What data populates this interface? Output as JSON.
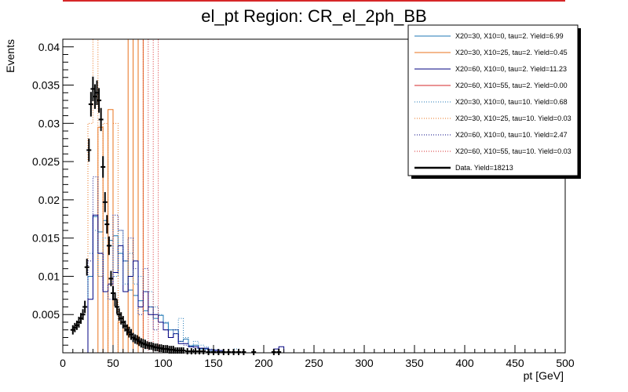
{
  "chart_data": {
    "type": "line",
    "title": "el_pt Region: CR_el_2ph_BB",
    "xlabel": "pt [GeV]",
    "ylabel": "Events",
    "xlim": [
      0,
      500
    ],
    "ylim": [
      0,
      0.041
    ],
    "x_ticks": [
      0,
      50,
      100,
      150,
      200,
      250,
      300,
      350,
      400,
      450,
      500
    ],
    "y_ticks": [
      0.005,
      0.01,
      0.015,
      0.02,
      0.025,
      0.03,
      0.035,
      0.04
    ],
    "legend_position": "top-right",
    "bin_edges": [
      25,
      30,
      35,
      40,
      45,
      50,
      55,
      60,
      65,
      70,
      75,
      80,
      85,
      90,
      95,
      100,
      105,
      110,
      115,
      120,
      125,
      130,
      135,
      140,
      145,
      150,
      155,
      160,
      165,
      170,
      175,
      180,
      185,
      190,
      195,
      200,
      205,
      210,
      215,
      220,
      225
    ],
    "series": [
      {
        "name": "X20=30, X10=0, tau=2. Yield=6.99",
        "color": "#1f77b4",
        "style": "solid",
        "values": [
          0.01,
          0.0178,
          0.0158,
          0.0173,
          0.0147,
          0.0153,
          0.013,
          0.012,
          0.0082,
          0.0075,
          0.0068,
          0.0055,
          0.006,
          0.0045,
          0.0049,
          0.0039,
          0.003,
          0.003,
          0.0015,
          0.0018,
          0.0009,
          0.001,
          0.0005,
          0.0005,
          0.0002,
          0,
          0,
          0,
          0,
          0,
          0,
          0,
          0,
          0,
          0,
          0,
          0,
          0,
          0,
          0
        ]
      },
      {
        "name": "X20=30, X10=25, tau=2. Yield=0.45",
        "color": "#e8731e",
        "style": "solid",
        "values": [
          0,
          0,
          0.0295,
          0,
          0.0318,
          0,
          0.004,
          0,
          0.041,
          0,
          0.041,
          0,
          0,
          0,
          0,
          0,
          0,
          0,
          0,
          0,
          0,
          0,
          0,
          0,
          0,
          0,
          0,
          0,
          0,
          0,
          0,
          0,
          0,
          0,
          0,
          0,
          0,
          0,
          0,
          0
        ]
      },
      {
        "name": "X20=60, X10=0, tau=2. Yield=11.23",
        "color": "#000080",
        "style": "solid",
        "values": [
          0.007,
          0.018,
          0.013,
          0.008,
          0.009,
          0.0105,
          0.014,
          0.008,
          0.01,
          0.012,
          0.006,
          0.008,
          0.005,
          0.005,
          0.004,
          0.003,
          0.002,
          0.0025,
          0.0012,
          0.0012,
          0.0008,
          0.0008,
          0.0006,
          0.0006,
          0.0004,
          0.0003,
          0.0003,
          0,
          0,
          0,
          0,
          0,
          0,
          0,
          0,
          0,
          0,
          0.0005,
          0.0008,
          0
        ]
      },
      {
        "name": "X20=60, X10=55, tau=2. Yield=0.00",
        "color": "#d62728",
        "style": "solid",
        "values": [
          0,
          0,
          0,
          0,
          0,
          0,
          0,
          0,
          0,
          0,
          0,
          0,
          0,
          0,
          0,
          0,
          0,
          0,
          0,
          0,
          0,
          0,
          0,
          0,
          0,
          0,
          0,
          0,
          0,
          0,
          0,
          0,
          0,
          0,
          0,
          0,
          0,
          0,
          0,
          0
        ]
      },
      {
        "name": "X20=30, X10=0, tau=10. Yield=0.68",
        "color": "#1f77b4",
        "style": "dotted",
        "values": [
          0.013,
          0.016,
          0.01,
          0.015,
          0.014,
          0.01,
          0.016,
          0.009,
          0.013,
          0.009,
          0.01,
          0.008,
          0.008,
          0.006,
          0.005,
          0.004,
          0.003,
          0.0025,
          0.0045,
          0.002,
          0.001,
          0.0015,
          0.001,
          0.0008,
          0.0005,
          0.0004,
          0.0002,
          0,
          0,
          0.0005,
          0,
          0,
          0,
          0,
          0,
          0,
          0,
          0,
          0,
          0
        ]
      },
      {
        "name": "X20=30, X10=25, tau=10. Yield=0.03",
        "color": "#e8731e",
        "style": "dotted",
        "values": [
          0.03,
          0.041,
          0.01,
          0.03,
          0,
          0.03,
          0,
          0,
          0,
          0,
          0,
          0,
          0,
          0,
          0,
          0,
          0,
          0,
          0,
          0,
          0,
          0,
          0,
          0,
          0,
          0,
          0,
          0,
          0,
          0,
          0,
          0,
          0,
          0,
          0,
          0,
          0,
          0,
          0,
          0
        ]
      },
      {
        "name": "X20=60, X10=0, tau=10. Yield=2.47",
        "color": "#000080",
        "style": "dotted",
        "values": [
          0.012,
          0.023,
          0.013,
          0.008,
          0.007,
          0.018,
          0.016,
          0.012,
          0.015,
          0.011,
          0.005,
          0.011,
          0.006,
          0.003,
          0.004,
          0.003,
          0.002,
          0.003,
          0.0015,
          0.001,
          0.0008,
          0.0006,
          0.0006,
          0.0004,
          0.0004,
          0.0004,
          0,
          0,
          0,
          0,
          0,
          0,
          0,
          0,
          0,
          0,
          0,
          0,
          0,
          0
        ]
      },
      {
        "name": "X20=60, X10=55, tau=10. Yield=0.03",
        "color": "#d62728",
        "style": "dotted",
        "values": [
          0,
          0,
          0,
          0,
          0,
          0,
          0,
          0,
          0,
          0,
          0,
          0.041,
          0,
          0.041,
          0,
          0,
          0,
          0,
          0,
          0,
          0,
          0,
          0,
          0,
          0,
          0,
          0,
          0,
          0,
          0,
          0,
          0,
          0,
          0,
          0,
          0,
          0,
          0,
          0,
          0
        ]
      }
    ],
    "data_series": {
      "name": "Data. Yield=18213",
      "color": "#000000",
      "x": [
        10,
        12,
        14,
        16,
        18,
        20,
        22,
        24,
        26,
        28,
        30,
        32,
        34,
        36,
        38,
        40,
        42,
        44,
        46,
        48,
        50,
        52,
        54,
        56,
        58,
        60,
        62,
        64,
        66,
        68,
        70,
        72,
        74,
        76,
        78,
        80,
        82,
        84,
        86,
        88,
        90,
        92,
        94,
        96,
        98,
        100,
        102,
        104,
        106,
        108,
        110,
        112,
        114,
        116,
        118,
        120,
        124,
        128,
        132,
        136,
        140,
        145,
        150,
        155,
        160,
        165,
        170,
        175,
        180,
        190,
        210,
        215
      ],
      "y": [
        0.003,
        0.0033,
        0.0036,
        0.004,
        0.0045,
        0.005,
        0.006,
        0.0112,
        0.0265,
        0.0325,
        0.0345,
        0.0335,
        0.034,
        0.033,
        0.0305,
        0.0243,
        0.0197,
        0.0168,
        0.014,
        0.0097,
        0.0078,
        0.007,
        0.006,
        0.005,
        0.0045,
        0.004,
        0.0035,
        0.003,
        0.0027,
        0.0024,
        0.002,
        0.0018,
        0.0017,
        0.0015,
        0.0013,
        0.0012,
        0.0011,
        0.001,
        0.0009,
        0.0009,
        0.0008,
        0.0007,
        0.0007,
        0.0006,
        0.0006,
        0.0005,
        0.0005,
        0.0005,
        0.0004,
        0.0004,
        0.0004,
        0.0003,
        0.0003,
        0.0003,
        0.0003,
        0.0003,
        0.0002,
        0.0002,
        0.0002,
        0.0002,
        0.0002,
        0.0001,
        0.0001,
        0.0001,
        0.0001,
        0.0001,
        0.0001,
        0.0001,
        0.0001,
        0.0001,
        0.0001,
        0.0001
      ],
      "yerr": [
        0.0003,
        0.0003,
        0.0003,
        0.0004,
        0.0004,
        0.0004,
        0.0005,
        0.0008,
        0.0012,
        0.0013,
        0.0013,
        0.0013,
        0.0013,
        0.0013,
        0.0012,
        0.0011,
        0.001,
        0.0009,
        0.0009,
        0.0007,
        0.0006,
        0.0006,
        0.0006,
        0.0005,
        0.0005,
        0.0005,
        0.0004,
        0.0004,
        0.0004,
        0.0004,
        0.0003,
        0.0003,
        0.0003,
        0.0003,
        0.0003,
        0.0003,
        0.0003,
        0.0002,
        0.0002,
        0.0002,
        0.0002,
        0.0002,
        0.0002,
        0.0002,
        0.0002,
        0.0002,
        0.0002,
        0.0002,
        0.0002,
        0.0002,
        0.0002,
        0.0001,
        0.0001,
        0.0001,
        0.0001,
        0.0001,
        0.0001,
        0.0001,
        0.0001,
        0.0001,
        0.0001,
        0.0001,
        0.0001,
        0.0001,
        0.0001,
        0.0001,
        0.0001,
        0.0001,
        0.0001,
        0.0001,
        0.0001,
        0.0001
      ]
    }
  }
}
